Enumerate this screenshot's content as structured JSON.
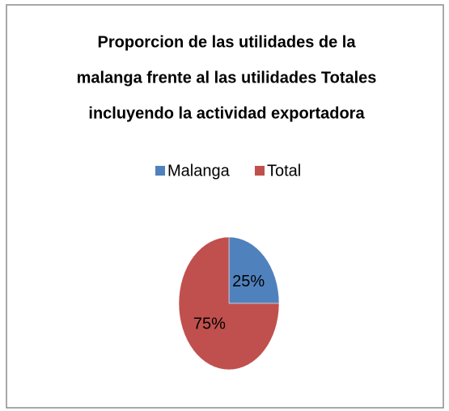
{
  "chart_data": {
    "type": "pie",
    "title": [
      "Proporcion de las utilidades de la",
      "malanga frente al las utilidades Totales",
      "incluyendo la actividad exportadora"
    ],
    "categories": [
      "Malanga",
      "Total"
    ],
    "values": [
      25,
      75
    ],
    "value_labels": [
      "25%",
      "75%"
    ],
    "colors": [
      "#4f81bd",
      "#c0504d"
    ],
    "legend": "top"
  }
}
